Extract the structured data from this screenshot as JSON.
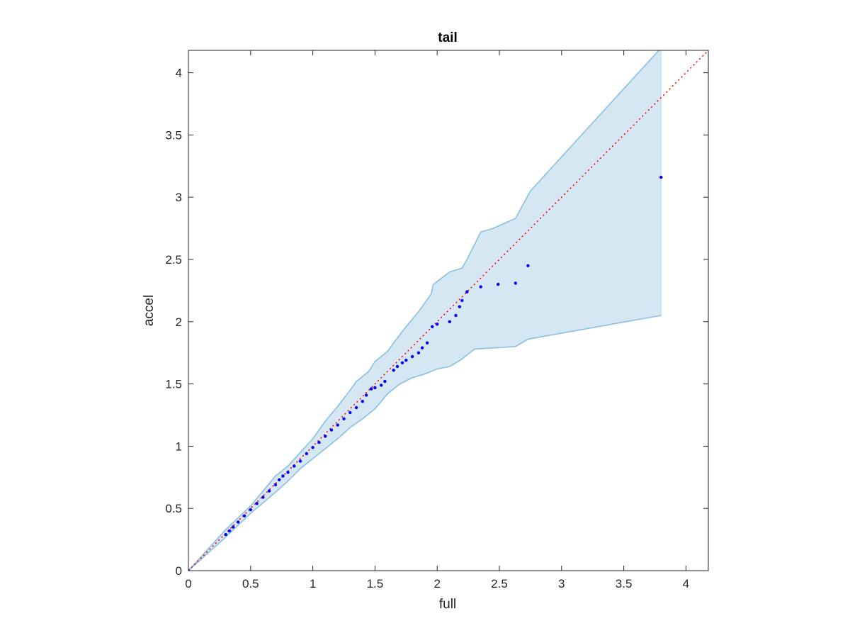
{
  "chart_data": {
    "type": "scatter",
    "title": "tail",
    "xlabel": "full",
    "ylabel": "accel",
    "xlim": [
      0,
      4.18
    ],
    "ylim": [
      0,
      4.18
    ],
    "xticks": [
      "0",
      "0.5",
      "1",
      "1.5",
      "2",
      "2.5",
      "3",
      "3.5",
      "4"
    ],
    "yticks": [
      "0",
      "0.5",
      "1",
      "1.5",
      "2",
      "2.5",
      "3",
      "3.5",
      "4"
    ],
    "grid": false,
    "reference_line": {
      "style": "dotted",
      "color": "#ff0000",
      "from": [
        0,
        0
      ],
      "to": [
        4.18,
        4.18
      ]
    },
    "band": {
      "fill": "#d6e7f4",
      "edge": "#8bbfde",
      "upper": [
        [
          0,
          0
        ],
        [
          0.3,
          0.33
        ],
        [
          0.5,
          0.52
        ],
        [
          0.7,
          0.76
        ],
        [
          0.8,
          0.84
        ],
        [
          0.9,
          0.95
        ],
        [
          1.0,
          1.06
        ],
        [
          1.1,
          1.2
        ],
        [
          1.2,
          1.32
        ],
        [
          1.3,
          1.45
        ],
        [
          1.35,
          1.52
        ],
        [
          1.45,
          1.6
        ],
        [
          1.5,
          1.68
        ],
        [
          1.6,
          1.76
        ],
        [
          1.65,
          1.83
        ],
        [
          1.75,
          1.96
        ],
        [
          1.85,
          2.08
        ],
        [
          1.95,
          2.22
        ],
        [
          1.97,
          2.3
        ],
        [
          2.1,
          2.4
        ],
        [
          2.2,
          2.43
        ],
        [
          2.25,
          2.52
        ],
        [
          2.35,
          2.72
        ],
        [
          2.45,
          2.75
        ],
        [
          2.63,
          2.83
        ],
        [
          2.75,
          3.05
        ],
        [
          3.8,
          4.2
        ]
      ],
      "lower": [
        [
          0,
          0
        ],
        [
          0.3,
          0.27
        ],
        [
          0.5,
          0.46
        ],
        [
          0.7,
          0.63
        ],
        [
          0.8,
          0.72
        ],
        [
          0.9,
          0.82
        ],
        [
          1.0,
          0.9
        ],
        [
          1.1,
          0.98
        ],
        [
          1.2,
          1.06
        ],
        [
          1.3,
          1.15
        ],
        [
          1.4,
          1.22
        ],
        [
          1.5,
          1.3
        ],
        [
          1.6,
          1.42
        ],
        [
          1.7,
          1.5
        ],
        [
          1.8,
          1.55
        ],
        [
          1.9,
          1.58
        ],
        [
          2.0,
          1.62
        ],
        [
          2.1,
          1.64
        ],
        [
          2.2,
          1.7
        ],
        [
          2.3,
          1.78
        ],
        [
          2.63,
          1.8
        ],
        [
          2.73,
          1.86
        ],
        [
          3.8,
          2.05
        ]
      ]
    },
    "series": [
      {
        "color": "#0000ff",
        "points": [
          [
            0,
            0
          ],
          [
            0.3,
            0.29
          ],
          [
            0.33,
            0.32
          ],
          [
            0.36,
            0.35
          ],
          [
            0.4,
            0.39
          ],
          [
            0.45,
            0.44
          ],
          [
            0.5,
            0.49
          ],
          [
            0.55,
            0.54
          ],
          [
            0.6,
            0.59
          ],
          [
            0.65,
            0.64
          ],
          [
            0.7,
            0.69
          ],
          [
            0.73,
            0.73
          ],
          [
            0.76,
            0.76
          ],
          [
            0.8,
            0.79
          ],
          [
            0.85,
            0.84
          ],
          [
            0.9,
            0.88
          ],
          [
            0.95,
            0.94
          ],
          [
            1.0,
            0.99
          ],
          [
            1.05,
            1.03
          ],
          [
            1.1,
            1.08
          ],
          [
            1.15,
            1.13
          ],
          [
            1.2,
            1.17
          ],
          [
            1.25,
            1.22
          ],
          [
            1.3,
            1.27
          ],
          [
            1.35,
            1.31
          ],
          [
            1.4,
            1.36
          ],
          [
            1.43,
            1.41
          ],
          [
            1.47,
            1.46
          ],
          [
            1.5,
            1.47
          ],
          [
            1.55,
            1.49
          ],
          [
            1.58,
            1.52
          ],
          [
            1.65,
            1.61
          ],
          [
            1.68,
            1.64
          ],
          [
            1.72,
            1.67
          ],
          [
            1.75,
            1.69
          ],
          [
            1.8,
            1.72
          ],
          [
            1.85,
            1.75
          ],
          [
            1.88,
            1.79
          ],
          [
            1.92,
            1.83
          ],
          [
            1.96,
            1.96
          ],
          [
            2.0,
            1.98
          ],
          [
            2.1,
            2.0
          ],
          [
            2.15,
            2.05
          ],
          [
            2.18,
            2.12
          ],
          [
            2.2,
            2.17
          ],
          [
            2.24,
            2.24
          ],
          [
            2.35,
            2.28
          ],
          [
            2.49,
            2.3
          ],
          [
            2.63,
            2.31
          ],
          [
            2.73,
            2.45
          ],
          [
            3.8,
            3.16
          ]
        ]
      }
    ]
  }
}
